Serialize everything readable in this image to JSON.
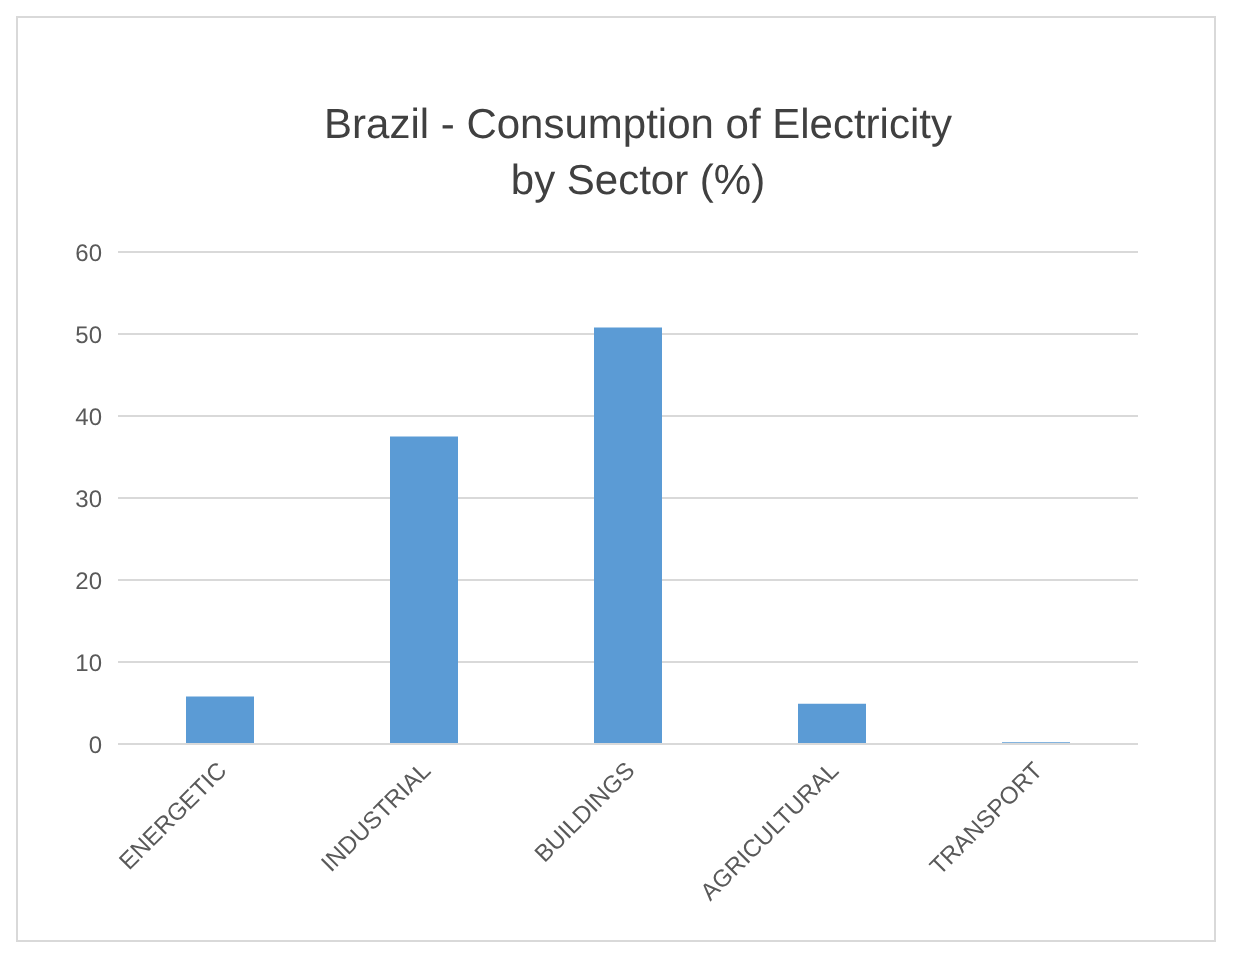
{
  "chart_data": {
    "type": "bar",
    "title": "Brazil - Consumption of Electricity by Sector (%)",
    "categories": [
      "ENERGETIC",
      "INDUSTRIAL",
      "BUILDINGS",
      "AGRICULTURAL",
      "TRANSPORT"
    ],
    "values": [
      5.8,
      37.5,
      50.8,
      4.9,
      0.2
    ],
    "color": "#5b9bd5",
    "ylim": [
      0,
      60
    ],
    "yticks": [
      0,
      10,
      20,
      30,
      40,
      50,
      60
    ],
    "grid": "y"
  }
}
